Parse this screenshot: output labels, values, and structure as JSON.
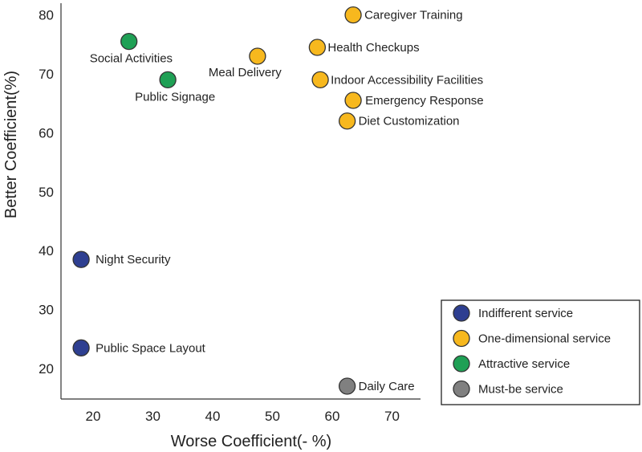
{
  "chart_data": {
    "type": "scatter",
    "xlabel": "Worse Coefficient(- %)",
    "ylabel": "Better Coefficient(%)",
    "xlim": [
      15,
      75
    ],
    "ylim": [
      17.5,
      81
    ],
    "xticks": [
      "20",
      "30",
      "40",
      "50",
      "60",
      "70"
    ],
    "yticks": [
      "20",
      "30",
      "40",
      "50",
      "60",
      "70",
      "80"
    ],
    "grid": false,
    "legend_position": "bottom-right",
    "series": [
      {
        "name": "Indifferent service",
        "color": "#2e3f91",
        "points": [
          {
            "label": "Night Security",
            "x": 18,
            "y": 38.5
          },
          {
            "label": "Public Space Layout",
            "x": 18,
            "y": 23.5
          }
        ]
      },
      {
        "name": "One-dimensional service",
        "color": "#f7b81e",
        "points": [
          {
            "label": "Caregiver Training",
            "x": 63.5,
            "y": 80
          },
          {
            "label": "Health Checkups",
            "x": 57.5,
            "y": 74.5
          },
          {
            "label": "Meal Delivery",
            "x": 47.5,
            "y": 73
          },
          {
            "label": "Indoor Accessibility Facilities",
            "x": 58,
            "y": 69
          },
          {
            "label": "Emergency Response",
            "x": 63.5,
            "y": 65.5
          },
          {
            "label": "Diet Customization",
            "x": 62.5,
            "y": 62
          }
        ]
      },
      {
        "name": "Attractive service",
        "color": "#1fa055",
        "points": [
          {
            "label": "Social Activities",
            "x": 26,
            "y": 75.5
          },
          {
            "label": "Public Signage",
            "x": 32.5,
            "y": 69
          }
        ]
      },
      {
        "name": "Must-be service",
        "color": "#808080",
        "points": [
          {
            "label": "Daily Care",
            "x": 62.5,
            "y": 17
          }
        ]
      }
    ]
  }
}
